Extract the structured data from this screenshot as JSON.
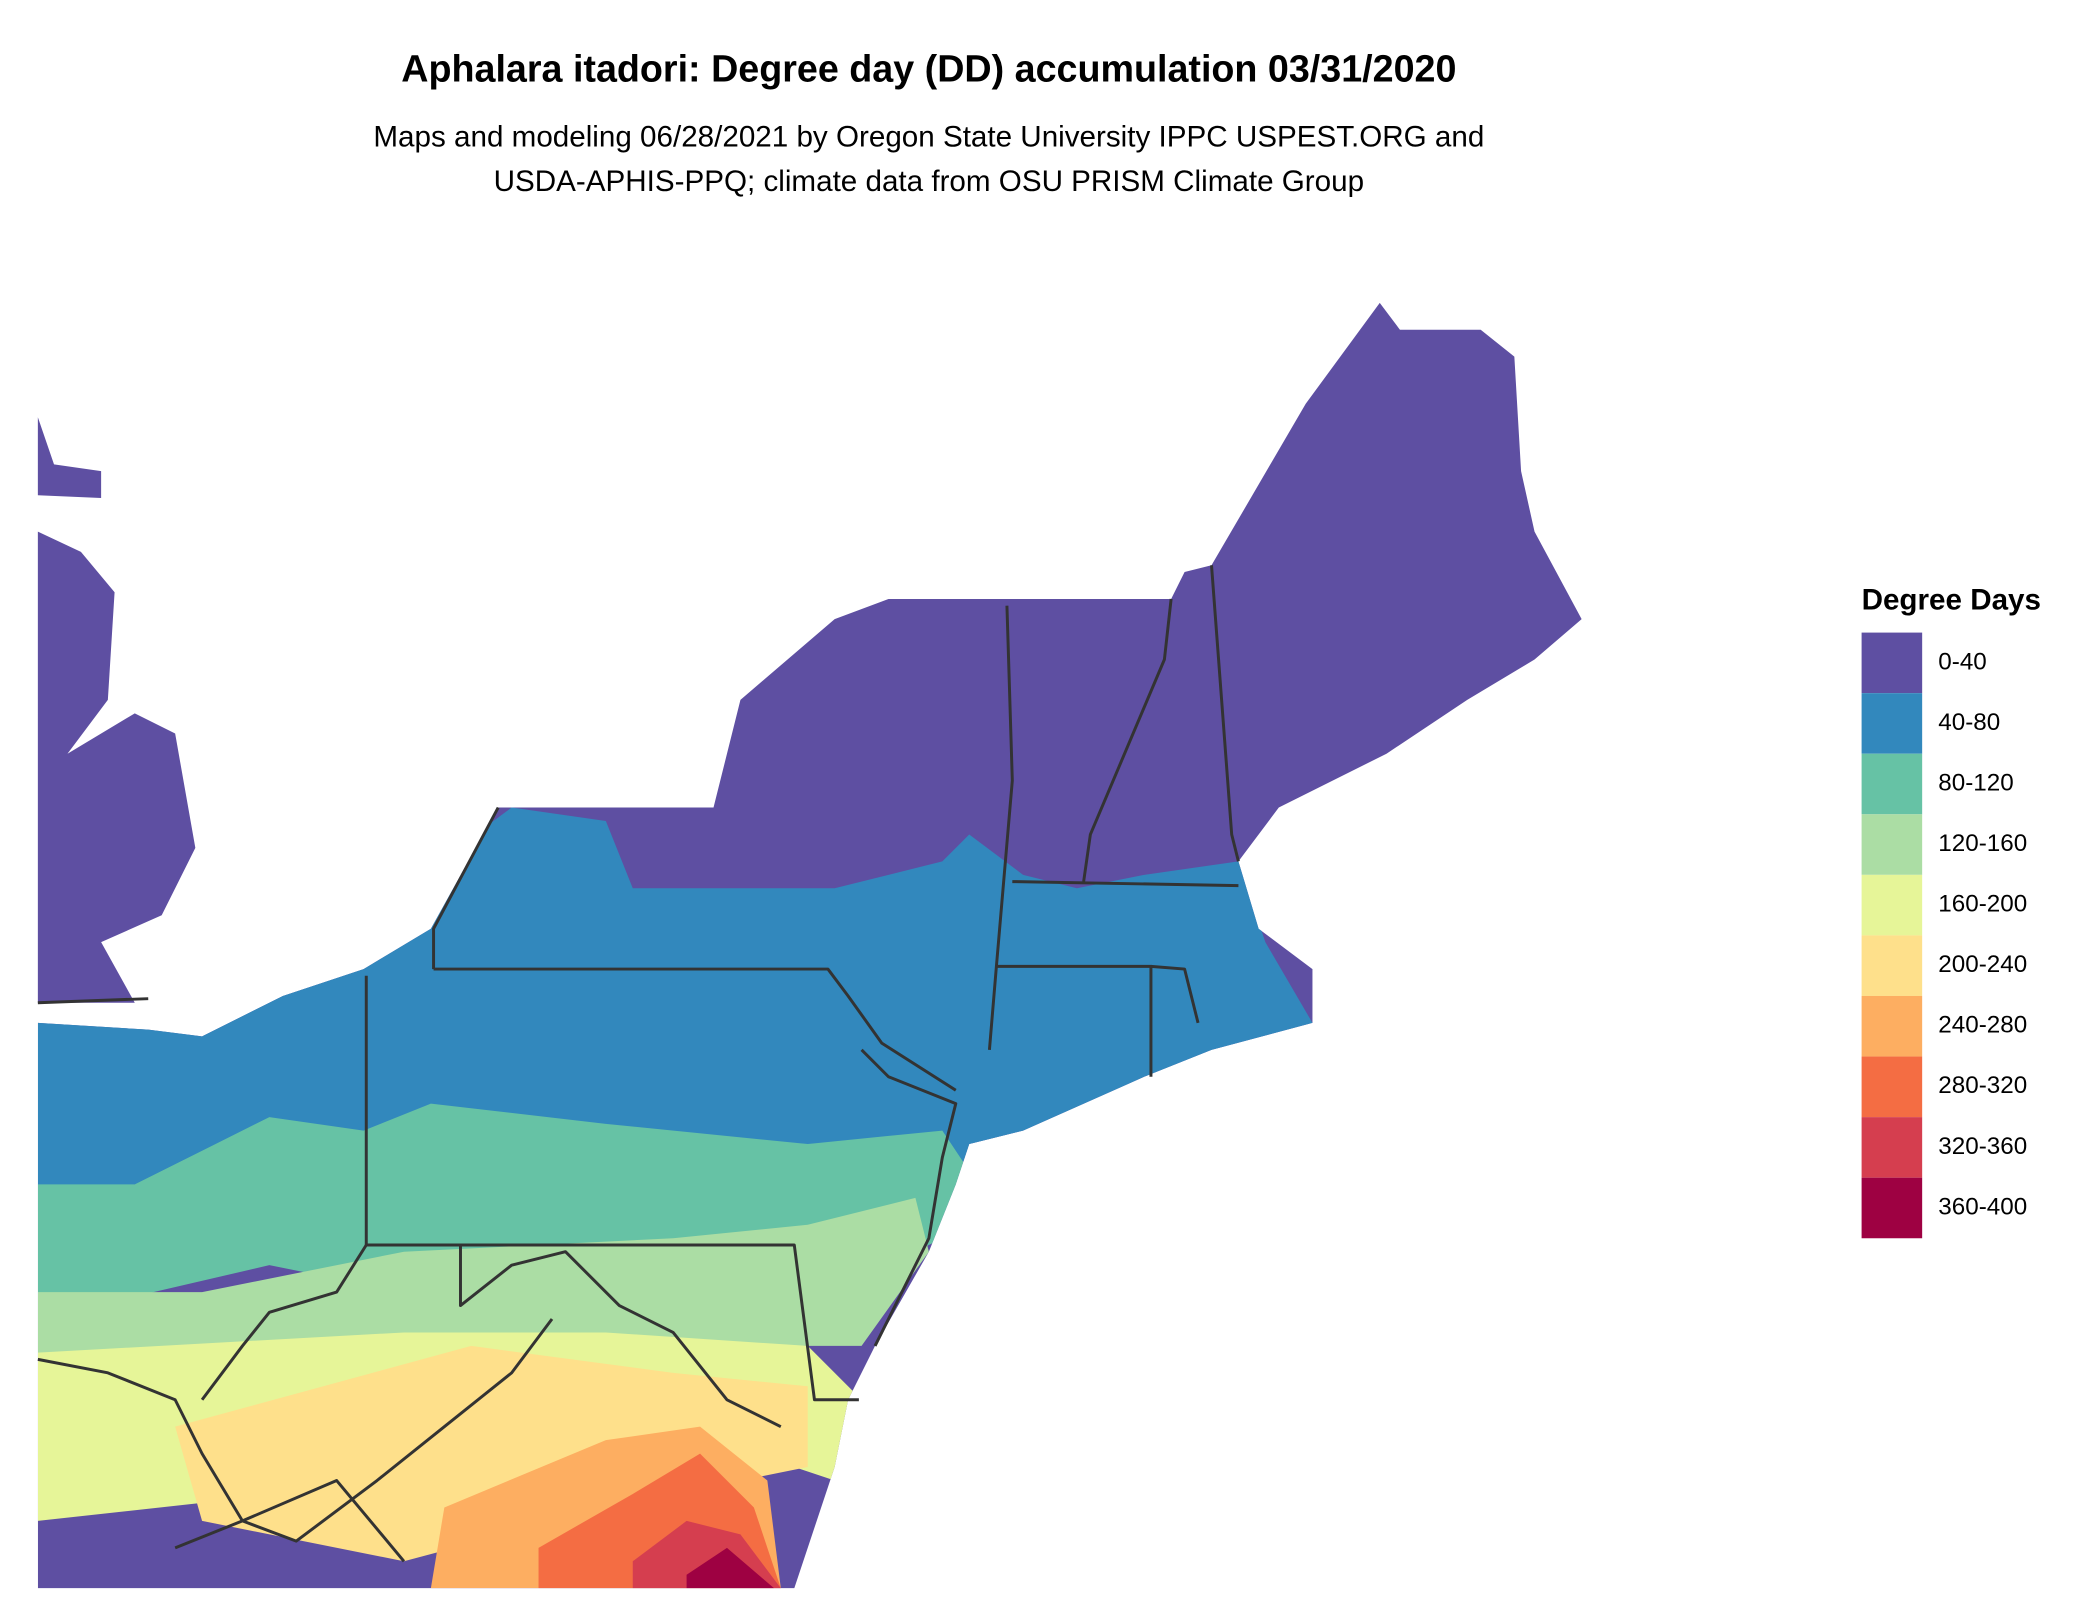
{
  "title": "Aphalara itadori: Degree day (DD) accumulation 03/31/2020",
  "subtitle": [
    "Maps and modeling 06/28/2021 by Oregon State University IPPC USPEST.ORG and",
    "USDA-APHIS-PPQ; climate data from OSU PRISM Climate Group"
  ],
  "legend": {
    "title": "Degree Days",
    "items": [
      {
        "label": "0-40",
        "color": "#5e4fa2"
      },
      {
        "label": "40-80",
        "color": "#3288bd"
      },
      {
        "label": "80-120",
        "color": "#66c2a5"
      },
      {
        "label": "120-160",
        "color": "#abdda4"
      },
      {
        "label": "160-200",
        "color": "#e6f598"
      },
      {
        "label": "200-240",
        "color": "#fee08b"
      },
      {
        "label": "240-280",
        "color": "#fdae61"
      },
      {
        "label": "280-320",
        "color": "#f46d43"
      },
      {
        "label": "320-360",
        "color": "#d53e4f"
      },
      {
        "label": "360-400",
        "color": "#9e0142"
      }
    ]
  }
}
